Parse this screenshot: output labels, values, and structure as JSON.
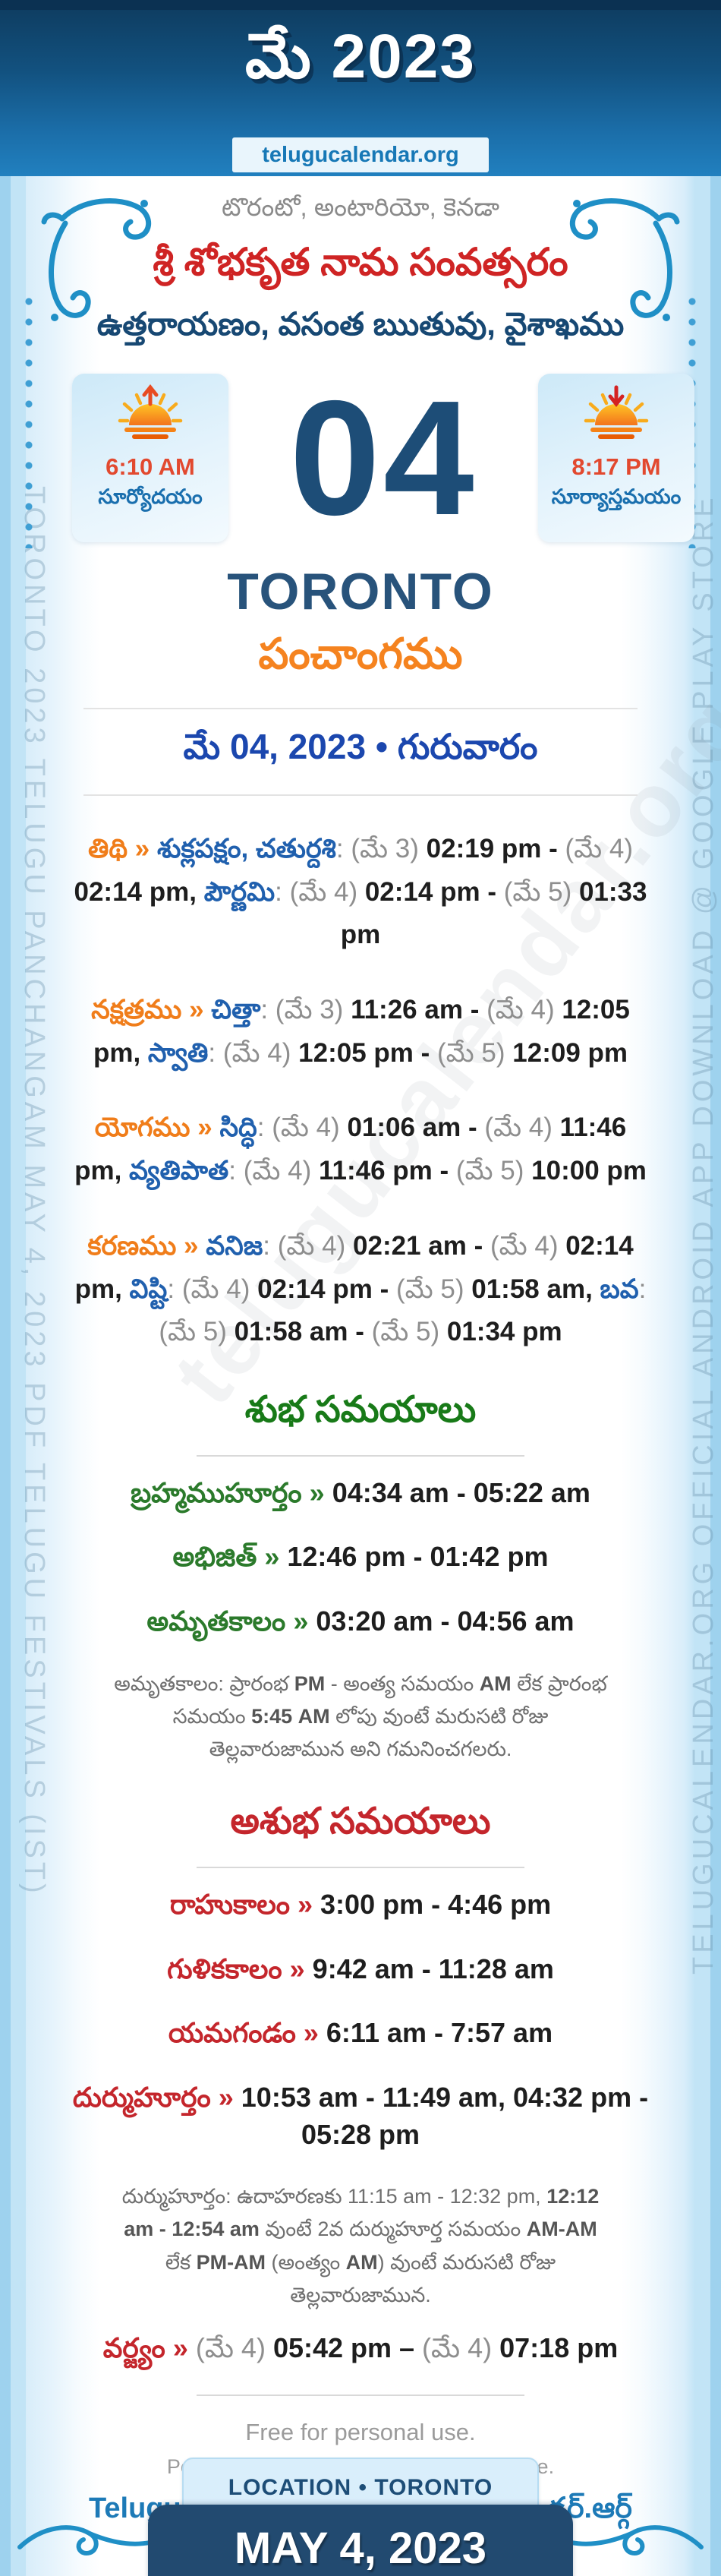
{
  "header": {
    "title": "మే 2023",
    "site": "telugucalendar.org"
  },
  "intro": {
    "location_line": "టొరంటో, అంటారియో, కెనడా",
    "samvatsaram": "శ్రీ శోభకృత నామ సంవత్సరం",
    "ayanam_line": "ఉత్తరాయణం, వసంత ఋతువు, వైశాఖము"
  },
  "day": {
    "number": "04",
    "city": "TORONTO",
    "panchangam_label": "పంచాంగము",
    "date_line": "మే 04, 2023 • గురువారం",
    "sunrise": {
      "time": "6:10 AM",
      "label": "సూర్యోదయం"
    },
    "sunset": {
      "time": "8:17 PM",
      "label": "సూర్యాస్తమయం"
    }
  },
  "panchang": {
    "tithi": [
      {
        "t": "తిథి",
        "c": "orange"
      },
      {
        "t": " » ",
        "c": "orange"
      },
      {
        "t": "శుక్లపక్షం, చతుర్దశి",
        "c": "blue"
      },
      {
        "t": ": ",
        "c": "gray"
      },
      {
        "t": "(మే 3) ",
        "c": "gray"
      },
      {
        "t": "02:19 pm",
        "c": "time"
      },
      {
        "t": " - ",
        "c": "time"
      },
      {
        "t": "(మే 4) ",
        "c": "gray"
      },
      {
        "t": "02:14 pm",
        "c": "time"
      },
      {
        "t": ", ",
        "c": "time"
      },
      {
        "t": "పౌర్ణమి",
        "c": "blue"
      },
      {
        "t": ": ",
        "c": "gray"
      },
      {
        "t": "(మే 4) ",
        "c": "gray"
      },
      {
        "t": "02:14 pm",
        "c": "time"
      },
      {
        "t": " - ",
        "c": "time"
      },
      {
        "t": "(మే 5) ",
        "c": "gray"
      },
      {
        "t": "01:33 pm",
        "c": "time"
      }
    ],
    "nakshatram": [
      {
        "t": "నక్షత్రము",
        "c": "orange"
      },
      {
        "t": " » ",
        "c": "orange"
      },
      {
        "t": "చిత్తా",
        "c": "blue"
      },
      {
        "t": ": ",
        "c": "gray"
      },
      {
        "t": "(మే 3) ",
        "c": "gray"
      },
      {
        "t": "11:26 am",
        "c": "time"
      },
      {
        "t": " - ",
        "c": "time"
      },
      {
        "t": "(మే 4) ",
        "c": "gray"
      },
      {
        "t": "12:05 pm",
        "c": "time"
      },
      {
        "t": ", ",
        "c": "time"
      },
      {
        "t": "స్వాతి",
        "c": "blue"
      },
      {
        "t": ": ",
        "c": "gray"
      },
      {
        "t": "(మే 4) ",
        "c": "gray"
      },
      {
        "t": "12:05 pm",
        "c": "time"
      },
      {
        "t": " - ",
        "c": "time"
      },
      {
        "t": "(మే 5) ",
        "c": "gray"
      },
      {
        "t": "12:09 pm",
        "c": "time"
      }
    ],
    "yogam": [
      {
        "t": "యోగము",
        "c": "orange"
      },
      {
        "t": " » ",
        "c": "orange"
      },
      {
        "t": "సిద్ధి",
        "c": "blue"
      },
      {
        "t": ": ",
        "c": "gray"
      },
      {
        "t": "(మే 4) ",
        "c": "gray"
      },
      {
        "t": "01:06 am",
        "c": "time"
      },
      {
        "t": " - ",
        "c": "time"
      },
      {
        "t": "(మే 4) ",
        "c": "gray"
      },
      {
        "t": "11:46 pm",
        "c": "time"
      },
      {
        "t": ", ",
        "c": "time"
      },
      {
        "t": "వ్యతిపాత",
        "c": "blue"
      },
      {
        "t": ": ",
        "c": "gray"
      },
      {
        "t": "(మే 4) ",
        "c": "gray"
      },
      {
        "t": "11:46 pm",
        "c": "time"
      },
      {
        "t": " - ",
        "c": "time"
      },
      {
        "t": "(మే 5) ",
        "c": "gray"
      },
      {
        "t": "10:00 pm",
        "c": "time"
      }
    ],
    "karanam": [
      {
        "t": "కరణము",
        "c": "orange"
      },
      {
        "t": " » ",
        "c": "orange"
      },
      {
        "t": "వనిజ",
        "c": "blue"
      },
      {
        "t": ": ",
        "c": "gray"
      },
      {
        "t": "(మే 4) ",
        "c": "gray"
      },
      {
        "t": "02:21 am",
        "c": "time"
      },
      {
        "t": " - ",
        "c": "time"
      },
      {
        "t": "(మే 4) ",
        "c": "gray"
      },
      {
        "t": "02:14 pm",
        "c": "time"
      },
      {
        "t": ", ",
        "c": "time"
      },
      {
        "t": "విష్టి",
        "c": "blue"
      },
      {
        "t": ": ",
        "c": "gray"
      },
      {
        "t": "(మే 4) ",
        "c": "gray"
      },
      {
        "t": "02:14 pm",
        "c": "time"
      },
      {
        "t": " - ",
        "c": "time"
      },
      {
        "t": "(మే 5) ",
        "c": "gray"
      },
      {
        "t": "01:58 am",
        "c": "time"
      },
      {
        "t": ", ",
        "c": "time"
      },
      {
        "t": "బవ",
        "c": "blue"
      },
      {
        "t": ": ",
        "c": "gray"
      },
      {
        "t": "(మే 5) ",
        "c": "gray"
      },
      {
        "t": "01:58 am",
        "c": "time"
      },
      {
        "t": " - ",
        "c": "time"
      },
      {
        "t": "(మే 5) ",
        "c": "gray"
      },
      {
        "t": "01:34 pm",
        "c": "time"
      }
    ]
  },
  "shubha": {
    "heading": "శుభ సమయాలు",
    "rows": [
      [
        {
          "t": "బ్రహ్మముహూర్తం",
          "c": "green"
        },
        {
          "t": " » ",
          "c": "green"
        },
        {
          "t": "04:34 am - 05:22 am",
          "c": "time"
        }
      ],
      [
        {
          "t": "అభిజిత్",
          "c": "green"
        },
        {
          "t": " » ",
          "c": "green"
        },
        {
          "t": "12:46 pm - 01:42 pm",
          "c": "time"
        }
      ],
      [
        {
          "t": "అమృతకాలం",
          "c": "green"
        },
        {
          "t": " » ",
          "c": "green"
        },
        {
          "t": "03:20 am - 04:56 am",
          "c": "time"
        }
      ]
    ],
    "note": [
      {
        "t": "అమృతకాలం: ప్రారంభ ",
        "c": "note"
      },
      {
        "t": "PM",
        "c": "notestrong"
      },
      {
        "t": " - అంత్య సమయం ",
        "c": "note"
      },
      {
        "t": "AM",
        "c": "notestrong"
      },
      {
        "t": " లేక ప్రారంభ సమయం ",
        "c": "note"
      },
      {
        "t": "5:45 AM",
        "c": "notestrong"
      },
      {
        "t": " లోపు వుంటే మరుసటి రోజు తెల్లవారుజామున అని గమనించగలరు.",
        "c": "note"
      }
    ]
  },
  "ashubha": {
    "heading": "అశుభ సమయాలు",
    "rows": [
      [
        {
          "t": "రాహుకాలం",
          "c": "red"
        },
        {
          "t": " » ",
          "c": "red"
        },
        {
          "t": "3:00 pm - 4:46 pm",
          "c": "time"
        }
      ],
      [
        {
          "t": "గుళికకాలం",
          "c": "red"
        },
        {
          "t": " » ",
          "c": "red"
        },
        {
          "t": "9:42 am - 11:28 am",
          "c": "time"
        }
      ],
      [
        {
          "t": "యమగండం",
          "c": "red"
        },
        {
          "t": " » ",
          "c": "red"
        },
        {
          "t": "6:11 am - 7:57 am",
          "c": "time"
        }
      ],
      [
        {
          "t": "దుర్ముహూర్తం",
          "c": "red"
        },
        {
          "t": " » ",
          "c": "red"
        },
        {
          "t": "10:53 am - 11:49 am, 04:32 pm - 05:28 pm",
          "c": "time"
        }
      ]
    ],
    "note": [
      {
        "t": "దుర్ముహూర్తం: ఉదాహరణకు 11:15 am - 12:32 pm, ",
        "c": "note"
      },
      {
        "t": "12:12 am - 12:54 am",
        "c": "notestrong"
      },
      {
        "t": " వుంటే 2వ దుర్ముహూర్త సమయం ",
        "c": "note"
      },
      {
        "t": "AM-AM",
        "c": "notestrong"
      },
      {
        "t": " లేక ",
        "c": "note"
      },
      {
        "t": "PM-AM",
        "c": "notestrong"
      },
      {
        "t": " (అంత్యం ",
        "c": "note"
      },
      {
        "t": "AM",
        "c": "notestrong"
      },
      {
        "t": ") వుంటే మరుసటి రోజు తెల్లవారుజామున.",
        "c": "note"
      }
    ],
    "varjyam": [
      {
        "t": "వర్జ్యం",
        "c": "red"
      },
      {
        "t": " » ",
        "c": "red"
      },
      {
        "t": "(మే 4) ",
        "c": "gray"
      },
      {
        "t": "05:42 pm",
        "c": "time"
      },
      {
        "t": " – ",
        "c": "time"
      },
      {
        "t": "(మే 4) ",
        "c": "gray"
      },
      {
        "t": "07:18 pm",
        "c": "time"
      }
    ]
  },
  "footer": {
    "free": "Free for personal use.",
    "permission": "Permission is required for commercial use.",
    "site_en": "TeluguCalendar.Org",
    "copyright": "©",
    "site_te": "తెలుగుక్యాలెండర్.ఆర్గ్",
    "location_tab": "LOCATION • TORONTO",
    "date_box": "MAY 4, 2023"
  },
  "watermarks": {
    "left": "TORONTO 2023 TELUGU PANCHANGAM MAY 4, 2023 PDF TELUGU FESTIVALS (IST)",
    "right": "TELUGUCALENDAR.ORG OFFICIAL ANDROID APP DOWNLOAD @ GOOGLE PLAY STORE",
    "diagonal": "telugucalendar.org"
  },
  "colors": {
    "header_navy": "#0e3b5e",
    "accent_orange": "#f5831f",
    "accent_blue": "#2060ae",
    "accent_green": "#187a18",
    "accent_red": "#c4262c",
    "date_blue": "#1b47ae",
    "time_red": "#e2492f",
    "navy": "#1d4d77"
  }
}
